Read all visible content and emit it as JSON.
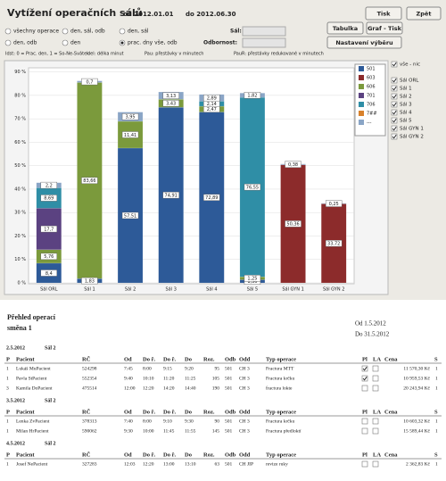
{
  "header": {
    "title": "Vytížení operačních sálů",
    "from": "od 2012.01.01",
    "to": "do 2012.06.30"
  },
  "buttons": [
    "Tisk",
    "Zpět",
    "Tabulka",
    "Graf - Tisk",
    "Nastavení výběru"
  ],
  "options": [
    {
      "label": "všechny operace",
      "checked": false
    },
    {
      "label": "den, sál, odb",
      "checked": false
    },
    {
      "label": "den, sál",
      "checked": false
    },
    {
      "label": "den, odb",
      "checked": false
    },
    {
      "label": "den",
      "checked": false
    },
    {
      "label": "prac. dny vše, odb",
      "checked": true
    }
  ],
  "sal_label": "Sál:",
  "odbornost_label": "Odbornost:",
  "legend_note": [
    "Idst: 0 = Prac. den, 1 = So-Ne-Svátek",
    "del: délka minut",
    "Pau: přestávky v minutech",
    "PauR: přestávky redukované v minutech"
  ],
  "chart_data": {
    "type": "bar",
    "stacked": true,
    "grid": true,
    "legend": "top-right",
    "categories": [
      "Sál ORL",
      "Sál 1",
      "Sál 2",
      "Sál 3",
      "Sál 4",
      "Sál 5",
      "Sál GYN 1",
      "Sál GYN 2"
    ],
    "ylim": [
      0,
      91
    ],
    "yticks": [
      {
        "value": 0,
        "label": "0 %"
      },
      {
        "value": 10,
        "label": "10 %"
      },
      {
        "value": 20,
        "label": "20 %"
      },
      {
        "value": 30,
        "label": "30 %"
      },
      {
        "value": 40,
        "label": "40 %"
      },
      {
        "value": 50,
        "label": "50 %"
      },
      {
        "value": 60,
        "label": "60 %"
      },
      {
        "value": 70,
        "label": "70 %"
      },
      {
        "value": 80,
        "label": "80 %"
      },
      {
        "value": 90,
        "label": "90 %"
      }
    ],
    "series": [
      {
        "name": "501",
        "color": "#2d5a98",
        "values": [
          8.4,
          1.83,
          57.51,
          74.91,
          72.89,
          1.36,
          null,
          null
        ],
        "value_labels": [
          "8,4",
          "1,83",
          "57,51",
          "74,91",
          "72,89",
          "1,36",
          null,
          null
        ]
      },
      {
        "name": "603",
        "color": "#8c2b2b",
        "values": [
          null,
          null,
          null,
          null,
          null,
          null,
          50.36,
          33.72
        ],
        "value_labels": [
          null,
          null,
          null,
          null,
          null,
          null,
          "50,36",
          "33,72"
        ]
      },
      {
        "name": "606",
        "color": "#7b9a3c",
        "values": [
          5.76,
          83.66,
          11.41,
          3.43,
          2.47,
          1.25,
          null,
          null
        ],
        "value_labels": [
          "5,76",
          "83,66",
          "11,41",
          "3,43",
          "2,47",
          "1,25",
          null,
          null
        ]
      },
      {
        "name": "701",
        "color": "#5b4281",
        "values": [
          17.7,
          null,
          null,
          null,
          null,
          null,
          null,
          null
        ],
        "value_labels": [
          "17,7",
          null,
          null,
          null,
          null,
          null,
          null,
          null
        ]
      },
      {
        "name": "706",
        "color": "#2f8ea6",
        "values": [
          8.69,
          null,
          null,
          null,
          2.14,
          76.55,
          null,
          null
        ],
        "value_labels": [
          "8,69",
          null,
          null,
          null,
          "2,14",
          "76,55",
          null,
          null
        ]
      },
      {
        "name": "7##",
        "color": "#d8812b",
        "values": [
          null,
          null,
          null,
          null,
          null,
          null,
          null,
          null
        ],
        "value_labels": [
          null,
          null,
          null,
          null,
          null,
          null,
          null,
          null
        ]
      },
      {
        "name": "---",
        "color": "#8aa5c6",
        "values": [
          2.2,
          0.7,
          3.95,
          3.13,
          2.89,
          1.82,
          0.38,
          0.25
        ],
        "value_labels": [
          "2,2",
          "0,7",
          "3,95",
          "3,13",
          "2,89",
          "1,82",
          "0,38",
          "0,25"
        ]
      }
    ]
  },
  "room_filter": [
    {
      "label": "vše - nic",
      "checked": true
    },
    {
      "label": "Sál ORL",
      "checked": true
    },
    {
      "label": "Sál 1",
      "checked": true
    },
    {
      "label": "Sál 2",
      "checked": true
    },
    {
      "label": "Sál 3",
      "checked": true
    },
    {
      "label": "Sál 4",
      "checked": true
    },
    {
      "label": "Sál 5",
      "checked": true
    },
    {
      "label": "Sál GYN 1",
      "checked": true
    },
    {
      "label": "Sál GYN 2",
      "checked": true
    }
  ],
  "report": {
    "title": "Přehled operací",
    "shift": "směna 1",
    "from": "Od 1.5.2012",
    "to": "Do 31.5.2012",
    "columns": [
      "P",
      "Pacient",
      "RČ",
      "Od",
      "Do ř.",
      "Do ř.",
      "Do",
      "Roz.",
      "Odb",
      "Odd",
      "Typ operace",
      "Pl",
      "LA",
      "Cena",
      "S"
    ],
    "groups": [
      {
        "date": "2.5.2012",
        "room": "Sál 2",
        "rows": [
          {
            "cells": [
              "1",
              "Lukáš MuPacient",
              "524298",
              "7:45",
              "8:00",
              "9:15",
              "9:20",
              "95",
              "501",
              "CH 3",
              "Fractura MTT"
            ],
            "pl": true,
            "la": false,
            "cena": "11 570,30 Kč",
            "s": "1"
          },
          {
            "cells": [
              "1",
              "Pavla StPacient",
              "552354",
              "9:40",
              "10:10",
              "11:20",
              "11:25",
              "105",
              "501",
              "CH 3",
              "Fractura krčku"
            ],
            "pl": true,
            "la": false,
            "cena": "10 959,53 Kč",
            "s": "1"
          },
          {
            "cells": [
              "3",
              "Kamila DoPacient",
              "475514",
              "12:00",
              "12:20",
              "14:20",
              "14:40",
              "190",
              "501",
              "CH 3",
              "fractura lokte"
            ],
            "pl": false,
            "la": false,
            "cena": "20 243,94 Kč",
            "s": "1"
          }
        ]
      },
      {
        "date": "3.5.2012",
        "room": "Sál 2",
        "rows": [
          {
            "cells": [
              "1",
              "Lenka ZvPacient",
              "378313",
              "7:40",
              "8:00",
              "9:10",
              "9:30",
              "90",
              "501",
              "CH 3",
              "Fractura krčku"
            ],
            "pl": false,
            "la": false,
            "cena": "10 603,32 Kč",
            "s": "1"
          },
          {
            "cells": [
              "1",
              "Milan HrPacient",
              "590062",
              "9:30",
              "10:00",
              "11:45",
              "11:55",
              "145",
              "501",
              "CH 3",
              "Fractura předloktí"
            ],
            "pl": false,
            "la": false,
            "cena": "15 589,44 Kč",
            "s": "1"
          }
        ]
      },
      {
        "date": "4.5.2012",
        "room": "Sál 2",
        "rows": [
          {
            "cells": [
              "1",
              "Josef NePacient",
              "327283",
              "12:03",
              "12:20",
              "13:00",
              "13:10",
              "63",
              "501",
              "CH JIP",
              "revize ruky"
            ],
            "pl": false,
            "la": false,
            "cena": "2 362,83 Kč",
            "s": "1"
          }
        ]
      }
    ]
  }
}
